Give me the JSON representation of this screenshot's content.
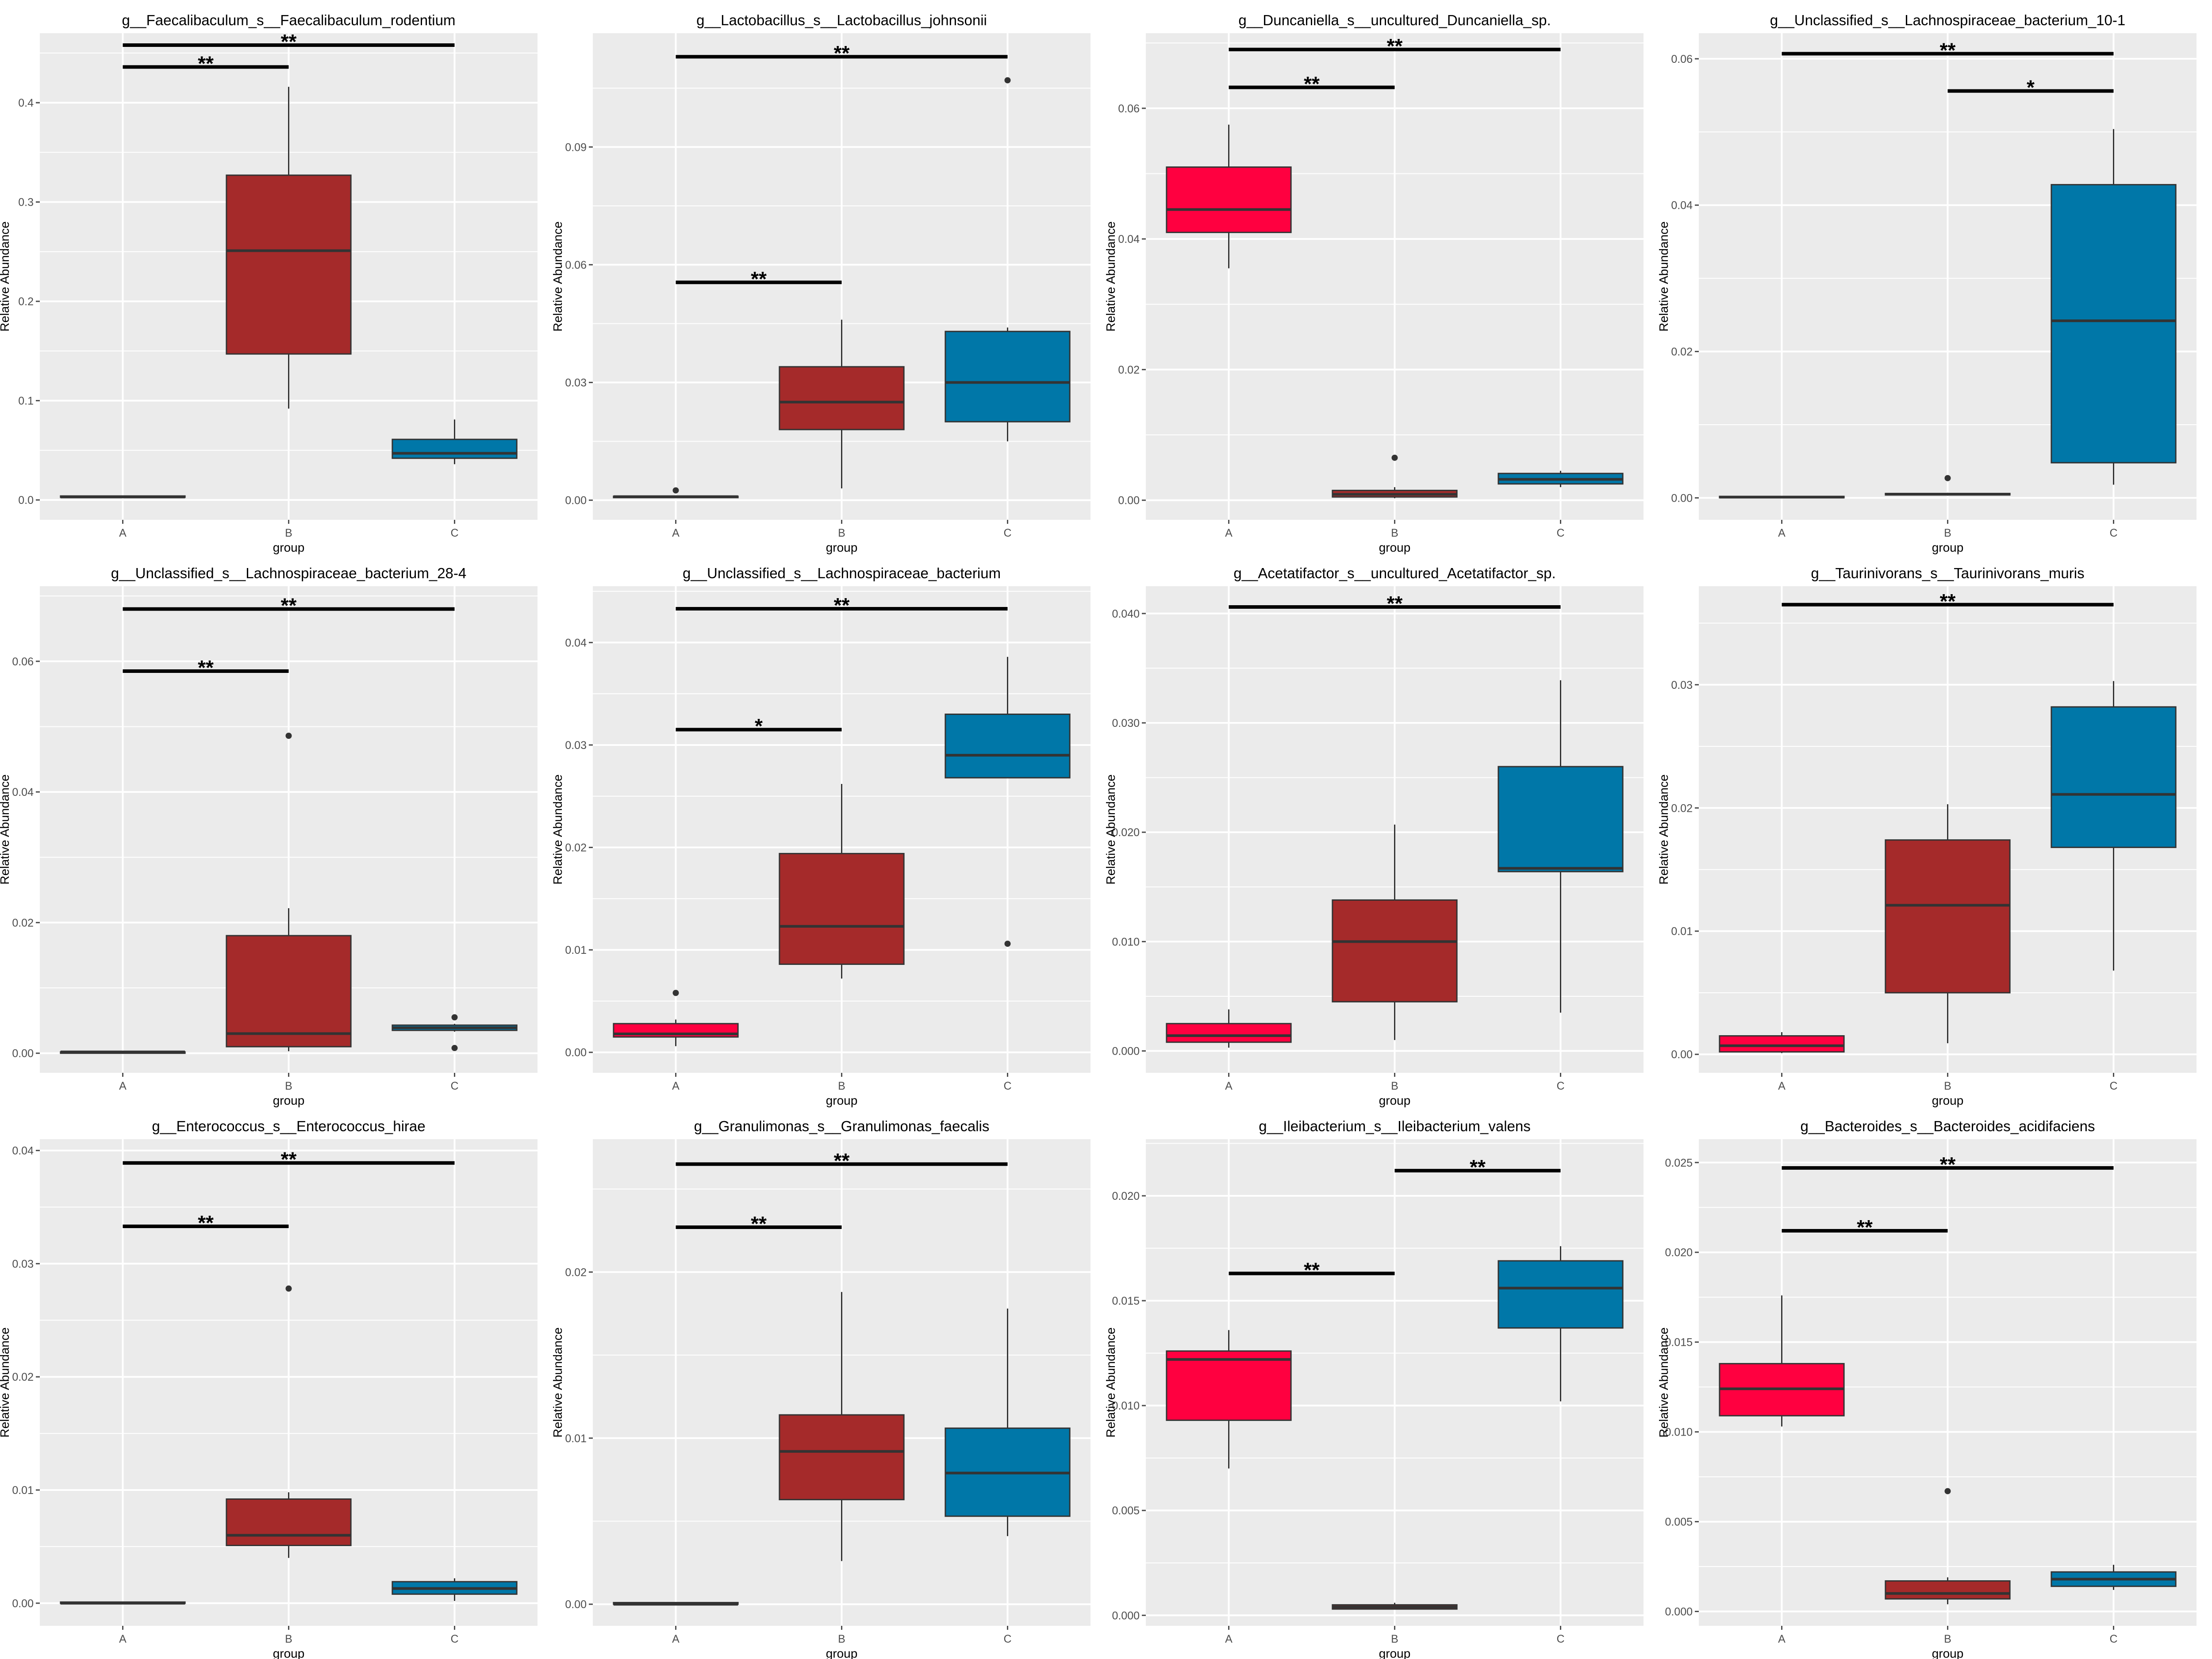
{
  "colors": {
    "panel_bg": "#EBEBEB",
    "grid": "#FFFFFF",
    "box_outline": "#333333",
    "group_fill": {
      "A": "#FF0040",
      "B": "#A52A2A",
      "C": "#0077A8"
    },
    "text": "#000000",
    "tick_text": "#4D4D4D"
  },
  "chart_data": [
    {
      "type": "boxplot",
      "title": "g__Faecalibaculum_s__Faecalibaculum_rodentium",
      "xlabel": "group",
      "ylabel": "Relative Abundance",
      "categories": [
        "A",
        "B",
        "C"
      ],
      "ylim": [
        -0.02,
        0.47
      ],
      "yticks": [
        0.0,
        0.1,
        0.2,
        0.3,
        0.4
      ],
      "ytick_labels": [
        "0.0",
        "0.1",
        "0.2",
        "0.3",
        "0.4"
      ],
      "boxes": [
        {
          "group": "A",
          "whisker_low": 0.002,
          "q1": 0.003,
          "median": 0.003,
          "q3": 0.004,
          "whisker_high": 0.004,
          "outliers": []
        },
        {
          "group": "B",
          "whisker_low": 0.092,
          "q1": 0.147,
          "median": 0.251,
          "q3": 0.327,
          "whisker_high": 0.416,
          "outliers": []
        },
        {
          "group": "C",
          "whisker_low": 0.036,
          "q1": 0.042,
          "median": 0.047,
          "q3": 0.061,
          "whisker_high": 0.081,
          "outliers": []
        }
      ],
      "brackets": [
        {
          "from": "A",
          "to": "B",
          "y": 0.436,
          "label": "**"
        },
        {
          "from": "A",
          "to": "C",
          "y": 0.458,
          "label": "**"
        }
      ]
    },
    {
      "type": "boxplot",
      "title": "g__Lactobacillus_s__Lactobacillus_johnsonii",
      "xlabel": "group",
      "ylabel": "Relative Abundance",
      "categories": [
        "A",
        "B",
        "C"
      ],
      "ylim": [
        -0.005,
        0.119
      ],
      "yticks": [
        0.0,
        0.03,
        0.06,
        0.09
      ],
      "ytick_labels": [
        "0.00",
        "0.03",
        "0.06",
        "0.09"
      ],
      "boxes": [
        {
          "group": "A",
          "whisker_low": 0.0005,
          "q1": 0.0007,
          "median": 0.0009,
          "q3": 0.001,
          "whisker_high": 0.0012,
          "outliers": [
            0.0025
          ]
        },
        {
          "group": "B",
          "whisker_low": 0.003,
          "q1": 0.018,
          "median": 0.025,
          "q3": 0.034,
          "whisker_high": 0.046,
          "outliers": []
        },
        {
          "group": "C",
          "whisker_low": 0.015,
          "q1": 0.02,
          "median": 0.03,
          "q3": 0.043,
          "whisker_high": 0.044,
          "outliers": [
            0.107
          ]
        }
      ],
      "brackets": [
        {
          "from": "A",
          "to": "B",
          "y": 0.0555,
          "label": "**"
        },
        {
          "from": "A",
          "to": "C",
          "y": 0.113,
          "label": "**"
        }
      ]
    },
    {
      "type": "boxplot",
      "title": "g__Duncaniella_s__uncultured_Duncaniella_sp.",
      "xlabel": "group",
      "ylabel": "Relative Abundance",
      "categories": [
        "A",
        "B",
        "C"
      ],
      "ylim": [
        -0.003,
        0.0715
      ],
      "yticks": [
        0.0,
        0.02,
        0.04,
        0.06
      ],
      "ytick_labels": [
        "0.00",
        "0.02",
        "0.04",
        "0.06"
      ],
      "boxes": [
        {
          "group": "A",
          "whisker_low": 0.0355,
          "q1": 0.041,
          "median": 0.0445,
          "q3": 0.051,
          "whisker_high": 0.0575,
          "outliers": []
        },
        {
          "group": "B",
          "whisker_low": 0.0003,
          "q1": 0.0005,
          "median": 0.0009,
          "q3": 0.0015,
          "whisker_high": 0.002,
          "outliers": [
            0.0065
          ]
        },
        {
          "group": "C",
          "whisker_low": 0.002,
          "q1": 0.0025,
          "median": 0.0032,
          "q3": 0.0041,
          "whisker_high": 0.0045,
          "outliers": []
        }
      ],
      "brackets": [
        {
          "from": "A",
          "to": "B",
          "y": 0.0632,
          "label": "**"
        },
        {
          "from": "A",
          "to": "C",
          "y": 0.069,
          "label": "**"
        }
      ]
    },
    {
      "type": "boxplot",
      "title": "g__Unclassified_s__Lachnospiraceae_bacterium_10-1",
      "xlabel": "group",
      "ylabel": "Relative Abundance",
      "categories": [
        "A",
        "B",
        "C"
      ],
      "ylim": [
        -0.003,
        0.0635
      ],
      "yticks": [
        0.0,
        0.02,
        0.04,
        0.06
      ],
      "ytick_labels": [
        "0.00",
        "0.02",
        "0.04",
        "0.06"
      ],
      "boxes": [
        {
          "group": "A",
          "whisker_low": 0.0001,
          "q1": 0.0001,
          "median": 0.0001,
          "q3": 0.0002,
          "whisker_high": 0.0002,
          "outliers": []
        },
        {
          "group": "B",
          "whisker_low": 0.0003,
          "q1": 0.0004,
          "median": 0.0005,
          "q3": 0.0006,
          "whisker_high": 0.0007,
          "outliers": [
            0.0027
          ]
        },
        {
          "group": "C",
          "whisker_low": 0.0018,
          "q1": 0.0048,
          "median": 0.0242,
          "q3": 0.0428,
          "whisker_high": 0.0504,
          "outliers": []
        }
      ],
      "brackets": [
        {
          "from": "B",
          "to": "C",
          "y": 0.0556,
          "label": "*"
        },
        {
          "from": "A",
          "to": "C",
          "y": 0.0607,
          "label": "**"
        }
      ]
    },
    {
      "type": "boxplot",
      "title": "g__Unclassified_s__Lachnospiraceae_bacterium_28-4",
      "xlabel": "group",
      "ylabel": "Relative Abundance",
      "categories": [
        "A",
        "B",
        "C"
      ],
      "ylim": [
        -0.003,
        0.0715
      ],
      "yticks": [
        0.0,
        0.02,
        0.04,
        0.06
      ],
      "ytick_labels": [
        "0.00",
        "0.02",
        "0.04",
        "0.06"
      ],
      "boxes": [
        {
          "group": "A",
          "whisker_low": 0.0001,
          "q1": 0.0001,
          "median": 0.0002,
          "q3": 0.0002,
          "whisker_high": 0.0003,
          "outliers": []
        },
        {
          "group": "B",
          "whisker_low": 0.0003,
          "q1": 0.001,
          "median": 0.003,
          "q3": 0.018,
          "whisker_high": 0.0222,
          "outliers": [
            0.0486
          ]
        },
        {
          "group": "C",
          "whisker_low": 0.0033,
          "q1": 0.0035,
          "median": 0.0039,
          "q3": 0.0043,
          "whisker_high": 0.0045,
          "outliers": [
            0.0055,
            0.0008
          ]
        }
      ],
      "brackets": [
        {
          "from": "A",
          "to": "B",
          "y": 0.0585,
          "label": "**"
        },
        {
          "from": "A",
          "to": "C",
          "y": 0.068,
          "label": "**"
        }
      ]
    },
    {
      "type": "boxplot",
      "title": "g__Unclassified_s__Lachnospiraceae_bacterium",
      "xlabel": "group",
      "ylabel": "Relative Abundance",
      "categories": [
        "A",
        "B",
        "C"
      ],
      "ylim": [
        -0.002,
        0.0455
      ],
      "yticks": [
        0.0,
        0.01,
        0.02,
        0.03,
        0.04
      ],
      "ytick_labels": [
        "0.00",
        "0.01",
        "0.02",
        "0.03",
        "0.04"
      ],
      "boxes": [
        {
          "group": "A",
          "whisker_low": 0.0006,
          "q1": 0.0015,
          "median": 0.0018,
          "q3": 0.0028,
          "whisker_high": 0.0032,
          "outliers": [
            0.0058
          ]
        },
        {
          "group": "B",
          "whisker_low": 0.0072,
          "q1": 0.0086,
          "median": 0.0123,
          "q3": 0.0194,
          "whisker_high": 0.0262,
          "outliers": []
        },
        {
          "group": "C",
          "whisker_low": 0.0268,
          "q1": 0.0268,
          "median": 0.029,
          "q3": 0.033,
          "whisker_high": 0.0386,
          "outliers": [
            0.0106
          ]
        }
      ],
      "brackets": [
        {
          "from": "A",
          "to": "B",
          "y": 0.0315,
          "label": "*"
        },
        {
          "from": "A",
          "to": "C",
          "y": 0.0433,
          "label": "**"
        }
      ]
    },
    {
      "type": "boxplot",
      "title": "g__Acetatifactor_s__uncultured_Acetatifactor_sp.",
      "xlabel": "group",
      "ylabel": "Relative Abundance",
      "categories": [
        "A",
        "B",
        "C"
      ],
      "ylim": [
        -0.002,
        0.0425
      ],
      "yticks": [
        0.0,
        0.01,
        0.02,
        0.03,
        0.04
      ],
      "ytick_labels": [
        "0.000",
        "0.010",
        "0.020",
        "0.030",
        "0.040"
      ],
      "boxes": [
        {
          "group": "A",
          "whisker_low": 0.0003,
          "q1": 0.0008,
          "median": 0.0014,
          "q3": 0.0025,
          "whisker_high": 0.0038,
          "outliers": []
        },
        {
          "group": "B",
          "whisker_low": 0.001,
          "q1": 0.0045,
          "median": 0.01,
          "q3": 0.0138,
          "whisker_high": 0.0207,
          "outliers": []
        },
        {
          "group": "C",
          "whisker_low": 0.0035,
          "q1": 0.0164,
          "median": 0.0167,
          "q3": 0.026,
          "whisker_high": 0.0339,
          "outliers": []
        }
      ],
      "brackets": [
        {
          "from": "A",
          "to": "C",
          "y": 0.0406,
          "label": "**"
        }
      ]
    },
    {
      "type": "boxplot",
      "title": "g__Taurinivorans_s__Taurinivorans_muris",
      "xlabel": "group",
      "ylabel": "Relative Abundance",
      "categories": [
        "A",
        "B",
        "C"
      ],
      "ylim": [
        -0.0015,
        0.038
      ],
      "yticks": [
        0.0,
        0.01,
        0.02,
        0.03
      ],
      "ytick_labels": [
        "0.00",
        "0.01",
        "0.02",
        "0.03"
      ],
      "boxes": [
        {
          "group": "A",
          "whisker_low": 0.0001,
          "q1": 0.0002,
          "median": 0.0007,
          "q3": 0.0015,
          "whisker_high": 0.0018,
          "outliers": []
        },
        {
          "group": "B",
          "whisker_low": 0.0009,
          "q1": 0.005,
          "median": 0.0121,
          "q3": 0.0174,
          "whisker_high": 0.0203,
          "outliers": []
        },
        {
          "group": "C",
          "whisker_low": 0.0068,
          "q1": 0.0168,
          "median": 0.0211,
          "q3": 0.0282,
          "whisker_high": 0.0303,
          "outliers": []
        }
      ],
      "brackets": [
        {
          "from": "A",
          "to": "C",
          "y": 0.0365,
          "label": "**"
        }
      ]
    },
    {
      "type": "boxplot",
      "title": "g__Enterococcus_s__Enterococcus_hirae",
      "xlabel": "group",
      "ylabel": "Relative Abundance",
      "categories": [
        "A",
        "B",
        "C"
      ],
      "ylim": [
        -0.002,
        0.041
      ],
      "yticks": [
        0.0,
        0.01,
        0.02,
        0.03,
        0.04
      ],
      "ytick_labels": [
        "0.00",
        "0.01",
        "0.02",
        "0.03",
        "0.04"
      ],
      "boxes": [
        {
          "group": "A",
          "whisker_low": 0.0,
          "q1": 0.0,
          "median": 0.0,
          "q3": 0.0001,
          "whisker_high": 0.0001,
          "outliers": []
        },
        {
          "group": "B",
          "whisker_low": 0.004,
          "q1": 0.0051,
          "median": 0.006,
          "q3": 0.0092,
          "whisker_high": 0.0098,
          "outliers": [
            0.0278
          ]
        },
        {
          "group": "C",
          "whisker_low": 0.0002,
          "q1": 0.0008,
          "median": 0.0013,
          "q3": 0.0019,
          "whisker_high": 0.0022,
          "outliers": []
        }
      ],
      "brackets": [
        {
          "from": "A",
          "to": "B",
          "y": 0.0333,
          "label": "**"
        },
        {
          "from": "A",
          "to": "C",
          "y": 0.0389,
          "label": "**"
        }
      ]
    },
    {
      "type": "boxplot",
      "title": "g__Granulimonas_s__Granulimonas_faecalis",
      "xlabel": "group",
      "ylabel": "Relative Abundance",
      "categories": [
        "A",
        "B",
        "C"
      ],
      "ylim": [
        -0.0013,
        0.028
      ],
      "yticks": [
        0.0,
        0.01,
        0.02
      ],
      "ytick_labels": [
        "0.00",
        "0.01",
        "0.02"
      ],
      "boxes": [
        {
          "group": "A",
          "whisker_low": 0.0,
          "q1": 0.0,
          "median": 0.0,
          "q3": 0.0001,
          "whisker_high": 0.0001,
          "outliers": []
        },
        {
          "group": "B",
          "whisker_low": 0.0026,
          "q1": 0.0063,
          "median": 0.0092,
          "q3": 0.0114,
          "whisker_high": 0.0188,
          "outliers": []
        },
        {
          "group": "C",
          "whisker_low": 0.0041,
          "q1": 0.0053,
          "median": 0.0079,
          "q3": 0.0106,
          "whisker_high": 0.0178,
          "outliers": []
        }
      ],
      "brackets": [
        {
          "from": "A",
          "to": "B",
          "y": 0.0227,
          "label": "**"
        },
        {
          "from": "A",
          "to": "C",
          "y": 0.0265,
          "label": "**"
        }
      ]
    },
    {
      "type": "boxplot",
      "title": "g__Ileibacterium_s__Ileibacterium_valens",
      "xlabel": "group",
      "ylabel": "Relative Abundance",
      "categories": [
        "A",
        "B",
        "C"
      ],
      "ylim": [
        -0.0005,
        0.0227
      ],
      "yticks": [
        0.0,
        0.005,
        0.01,
        0.015,
        0.02
      ],
      "ytick_labels": [
        "0.000",
        "0.005",
        "0.010",
        "0.015",
        "0.020"
      ],
      "boxes": [
        {
          "group": "A",
          "whisker_low": 0.007,
          "q1": 0.0093,
          "median": 0.0122,
          "q3": 0.0126,
          "whisker_high": 0.0136,
          "outliers": []
        },
        {
          "group": "B",
          "whisker_low": 0.0003,
          "q1": 0.0003,
          "median": 0.0004,
          "q3": 0.0005,
          "whisker_high": 0.0006,
          "outliers": []
        },
        {
          "group": "C",
          "whisker_low": 0.0102,
          "q1": 0.0137,
          "median": 0.0156,
          "q3": 0.0169,
          "whisker_high": 0.0176,
          "outliers": []
        }
      ],
      "brackets": [
        {
          "from": "A",
          "to": "B",
          "y": 0.0163,
          "label": "**"
        },
        {
          "from": "B",
          "to": "C",
          "y": 0.0212,
          "label": "**"
        }
      ]
    },
    {
      "type": "boxplot",
      "title": "g__Bacteroides_s__Bacteroides_acidifaciens",
      "xlabel": "group",
      "ylabel": "Relative Abundance",
      "categories": [
        "A",
        "B",
        "C"
      ],
      "ylim": [
        -0.0008,
        0.0263
      ],
      "yticks": [
        0.0,
        0.005,
        0.01,
        0.015,
        0.02,
        0.025
      ],
      "ytick_labels": [
        "0.000",
        "0.005",
        "0.010",
        "0.015",
        "0.020",
        "0.025"
      ],
      "boxes": [
        {
          "group": "A",
          "whisker_low": 0.0103,
          "q1": 0.0109,
          "median": 0.0124,
          "q3": 0.0138,
          "whisker_high": 0.0176,
          "outliers": []
        },
        {
          "group": "B",
          "whisker_low": 0.0004,
          "q1": 0.0007,
          "median": 0.001,
          "q3": 0.0017,
          "whisker_high": 0.0019,
          "outliers": [
            0.0067
          ]
        },
        {
          "group": "C",
          "whisker_low": 0.0012,
          "q1": 0.0014,
          "median": 0.0018,
          "q3": 0.0022,
          "whisker_high": 0.0026,
          "outliers": []
        }
      ],
      "brackets": [
        {
          "from": "A",
          "to": "B",
          "y": 0.0212,
          "label": "**"
        },
        {
          "from": "A",
          "to": "C",
          "y": 0.0247,
          "label": "**"
        }
      ]
    }
  ]
}
